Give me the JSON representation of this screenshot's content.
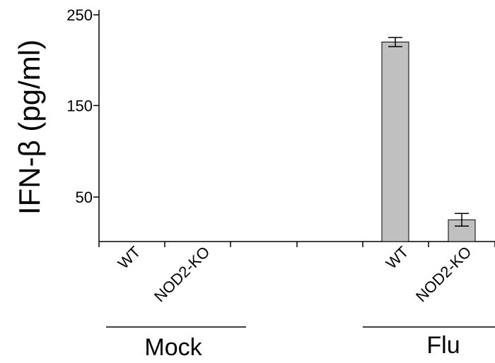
{
  "chart_data": {
    "type": "bar",
    "ylabel": "IFN-β (pg/ml)",
    "ylim": [
      0,
      250
    ],
    "yticks": [
      "250",
      "150",
      "50"
    ],
    "ytick_values": [
      250,
      150,
      50
    ],
    "categories": [
      "WT",
      "NOD2-KO",
      "WT",
      "NOD2-KO"
    ],
    "groups": [
      {
        "name": "Mock",
        "categories": [
          "WT",
          "NOD2-KO"
        ]
      },
      {
        "name": "Flu",
        "categories": [
          "WT",
          "NOD2-KO"
        ]
      }
    ],
    "values": [
      0,
      0,
      220,
      24
    ],
    "errors": [
      0,
      0,
      5,
      7
    ],
    "bar_color": "#c0c0c0",
    "grid": false
  }
}
